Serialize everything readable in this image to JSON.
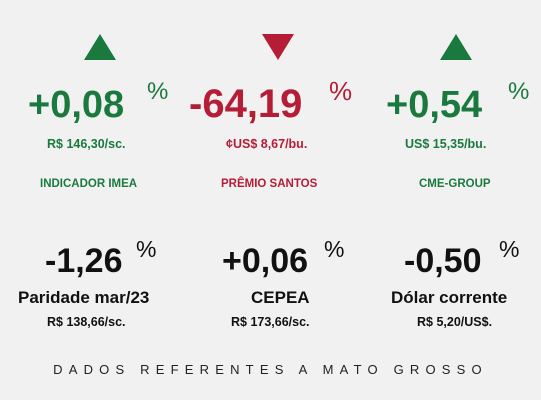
{
  "colors": {
    "green": "#1a7a3e",
    "red": "#b51d37",
    "black": "#111111",
    "background": "#f1f1f1"
  },
  "top": [
    {
      "trend": "up",
      "trend_icon": "up-triangle-icon",
      "value": "+0,08",
      "percent": "%",
      "price": "R$ 146,30/sc.",
      "label": "INDICADOR IMEA",
      "color": "green"
    },
    {
      "trend": "down",
      "trend_icon": "down-triangle-icon",
      "value": "-64,19",
      "percent": "%",
      "price": "¢US$ 8,67/bu.",
      "label": "PRÊMIO SANTOS",
      "color": "red"
    },
    {
      "trend": "up",
      "trend_icon": "up-triangle-icon",
      "value": "+0,54",
      "percent": "%",
      "price": "US$ 15,35/bu.",
      "label": "CME-GROUP",
      "color": "green"
    }
  ],
  "bottom": [
    {
      "value": "-1,26",
      "percent": "%",
      "title": "Paridade mar/23",
      "price": "R$ 138,66/sc."
    },
    {
      "value": "+0,06",
      "percent": "%",
      "title": "CEPEA",
      "price": "R$ 173,66/sc."
    },
    {
      "value": "-0,50",
      "percent": "%",
      "title": "Dólar corrente",
      "price": "R$ 5,20/US$."
    }
  ],
  "footer": "DADOS REFERENTES A MATO GROSSO"
}
